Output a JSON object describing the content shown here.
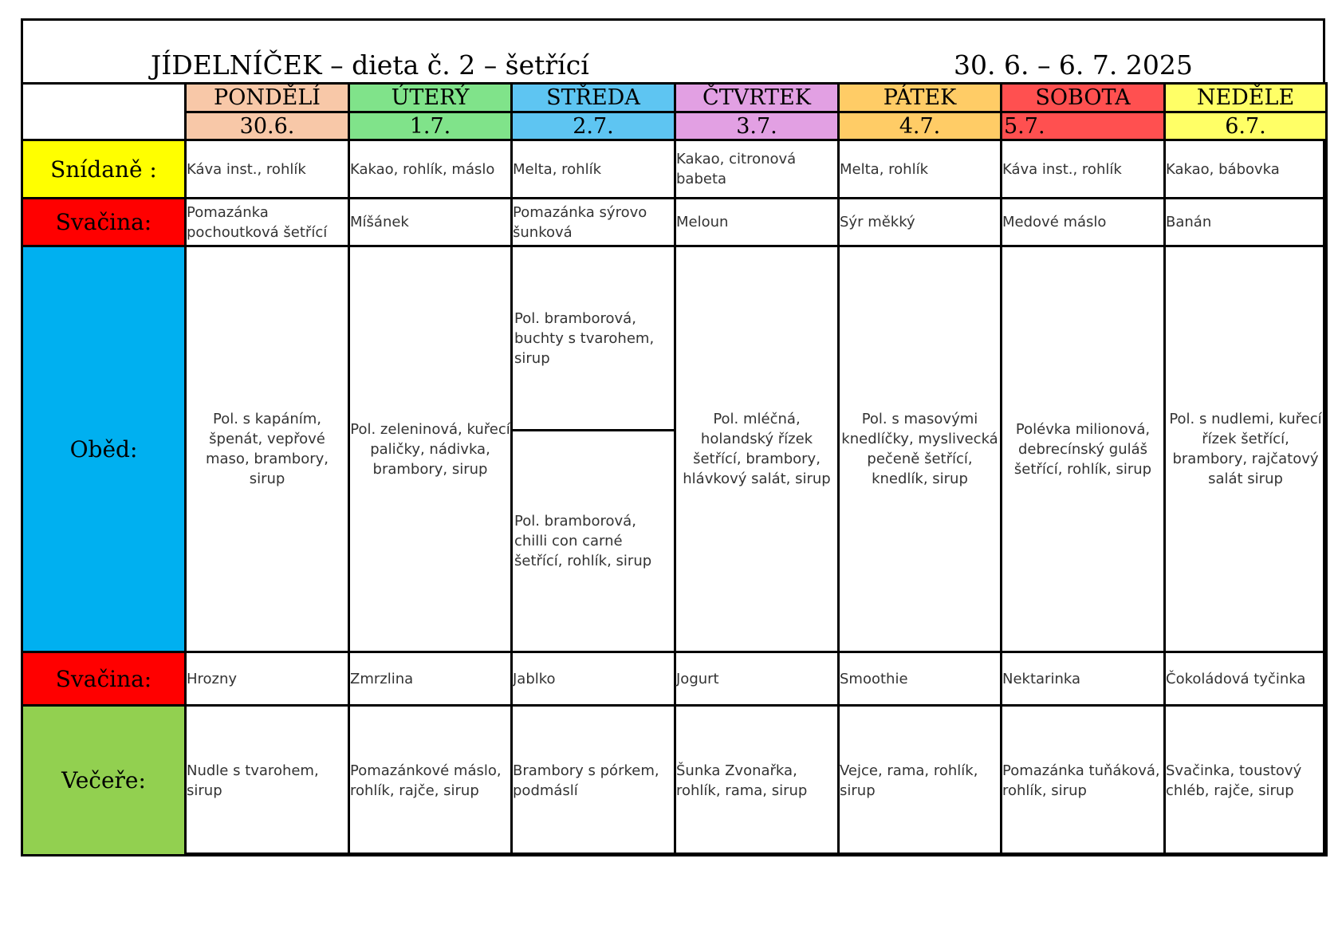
{
  "header": {
    "title": "JÍDELNÍČEK – dieta č. 2 – šetřící",
    "date_range": "30. 6. – 6. 7. 2025"
  },
  "colors": {
    "monday": "#f8c8a8",
    "tuesday": "#80e38a",
    "wednesday": "#5ec5f2",
    "thursday": "#e2a0e3",
    "friday": "#ffcc66",
    "saturday": "#ff5050",
    "sunday": "#ffff66",
    "breakfast": "#ffff00",
    "snack": "#ff0000",
    "lunch": "#00b0f0",
    "dinner": "#92d050"
  },
  "days": [
    {
      "name": "PONDĚLÍ",
      "date": "30.6."
    },
    {
      "name": "ÚTERÝ",
      "date": "1.7."
    },
    {
      "name": "STŘEDA",
      "date": "2.7."
    },
    {
      "name": "ČTVRTEK",
      "date": "3.7."
    },
    {
      "name": "PÁTEK",
      "date": "4.7."
    },
    {
      "name": "SOBOTA",
      "date": "5.7."
    },
    {
      "name": "NEDĚLE",
      "date": "6.7."
    }
  ],
  "meals": {
    "breakfast": {
      "label": "Snídaně :",
      "items": [
        "Káva inst., rohlík",
        "Kakao, rohlík, máslo",
        "Melta, rohlík",
        "Kakao, citronová babeta",
        "Melta, rohlík",
        "Káva inst., rohlík",
        "Kakao, bábovka"
      ]
    },
    "snack_am": {
      "label": "Svačina:",
      "items": [
        "Pomazánka pochoutková šetřící",
        "Míšánek",
        "Pomazánka sýrovo šunková",
        "Meloun",
        "Sýr měkký",
        "Medové máslo",
        "Banán"
      ]
    },
    "lunch": {
      "label": "Oběd:",
      "items": [
        "Pol. s kapáním, špenát, vepřové maso, brambory, sirup",
        "Pol. zeleninová, kuřecí paličky, nádivka, brambory, sirup",
        "",
        "Pol. mléčná, holandský řízek šetřící, brambory, hlávkový salát, sirup",
        "Pol. s masovými knedlíčky, myslivecká pečeně šetřící, knedlík, sirup",
        "Polévka milionová, debrecínský guláš šetřící, rohlík, sirup",
        "Pol. s nudlemi, kuřecí řízek šetřící, brambory, rajčatový salát sirup"
      ],
      "wednesday_option_1": "Pol. bramborová, buchty s tvarohem, sirup",
      "wednesday_option_2": "Pol. bramborová, chilli con carné šetřící, rohlík, sirup"
    },
    "snack_pm": {
      "label": "Svačina:",
      "items": [
        "Hrozny",
        "Zmrzlina",
        "Jablko",
        "Jogurt",
        "Smoothie",
        "Nektarinka",
        "Čokoládová tyčinka"
      ]
    },
    "dinner": {
      "label": "Večeře:",
      "items": [
        "Nudle s tvarohem, sirup",
        "Pomazánkové máslo, rohlík, rajče, sirup",
        "Brambory s pórkem, podmáslí",
        "Šunka Zvonařka, rohlík, rama, sirup",
        "Vejce, rama, rohlík, sirup",
        "Pomazánka tuňáková, rohlík, sirup",
        "Svačinka, toustový chléb, rajče, sirup"
      ]
    }
  }
}
